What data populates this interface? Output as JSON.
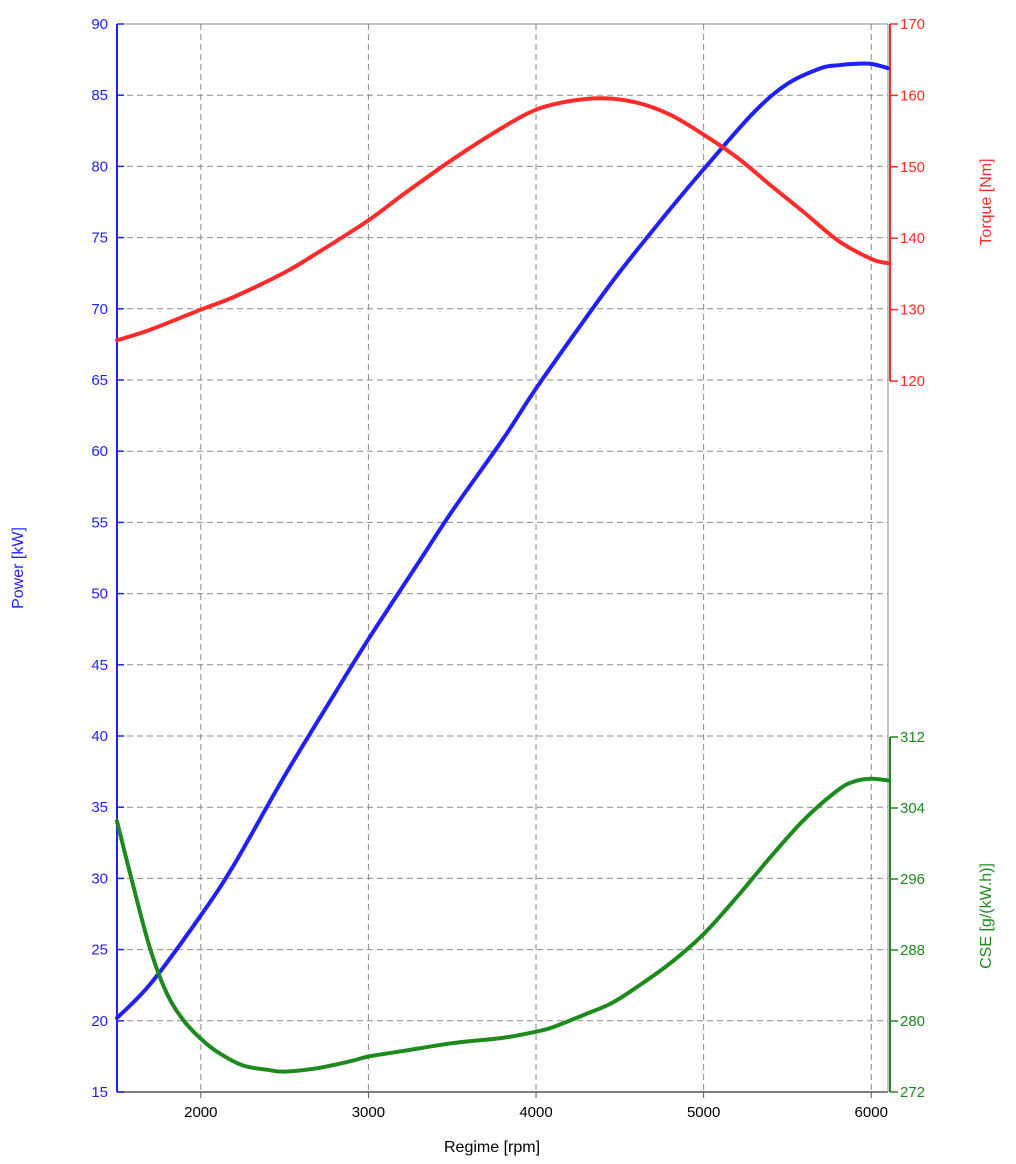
{
  "chart_data": {
    "type": "line",
    "xlabel": "Regime [rpm]",
    "xlim": [
      1500,
      6100
    ],
    "xticks": [
      2000,
      3000,
      4000,
      5000,
      6000
    ],
    "grid": true,
    "axes": {
      "power": {
        "label": "Power [kW]",
        "color": "#1f1fff",
        "lim": [
          15,
          90
        ],
        "ticks": [
          15,
          20,
          25,
          30,
          35,
          40,
          45,
          50,
          55,
          60,
          65,
          70,
          75,
          80,
          85,
          90
        ]
      },
      "torque": {
        "label": "Torque [Nm]",
        "color": "#ff2a2a",
        "lim": [
          120,
          170
        ],
        "ticks": [
          120,
          130,
          140,
          150,
          160,
          170
        ]
      },
      "cse": {
        "label": "CSE [g/(kW.h)]",
        "color": "#1e8a1e",
        "lim": [
          272,
          312
        ],
        "ticks": [
          272,
          280,
          288,
          296,
          304,
          312
        ]
      }
    },
    "series": [
      {
        "name": "Power [kW]",
        "axis": "power",
        "x": [
          1500,
          1700,
          2000,
          2200,
          2500,
          2800,
          3000,
          3300,
          3500,
          3800,
          4000,
          4300,
          4500,
          4800,
          5000,
          5300,
          5500,
          5700,
          5800,
          5900,
          6000,
          6100
        ],
        "y": [
          20.2,
          22.6,
          27.4,
          31.0,
          37.2,
          43.0,
          46.8,
          52.2,
          55.8,
          60.8,
          64.4,
          69.4,
          72.6,
          77.0,
          79.8,
          83.8,
          85.8,
          86.9,
          87.1,
          87.2,
          87.2,
          86.9
        ]
      },
      {
        "name": "Torque [Nm]",
        "axis": "torque",
        "x": [
          1500,
          1700,
          2000,
          2200,
          2500,
          2700,
          3000,
          3200,
          3500,
          3800,
          4000,
          4200,
          4400,
          4600,
          4800,
          5000,
          5200,
          5400,
          5600,
          5800,
          6000,
          6100
        ],
        "y": [
          125.7,
          127.2,
          130.0,
          131.8,
          135.2,
          138.0,
          142.5,
          146.0,
          151.0,
          155.5,
          158.0,
          159.2,
          159.6,
          159.0,
          157.3,
          154.5,
          151.3,
          147.4,
          143.6,
          139.7,
          137.1,
          136.5
        ]
      },
      {
        "name": "CSE [g/(kW.h)]",
        "axis": "cse",
        "x": [
          1500,
          1600,
          1700,
          1800,
          1900,
          2000,
          2100,
          2250,
          2400,
          2500,
          2700,
          2900,
          3000,
          3200,
          3500,
          3800,
          4000,
          4100,
          4300,
          4450,
          4600,
          4800,
          5000,
          5200,
          5400,
          5600,
          5800,
          5900,
          6000,
          6100
        ],
        "y": [
          302.5,
          295.0,
          288.0,
          283.0,
          280.0,
          278.0,
          276.5,
          275.0,
          274.5,
          274.3,
          274.7,
          275.5,
          276.0,
          276.6,
          277.5,
          278.1,
          278.8,
          279.3,
          280.8,
          282.0,
          283.8,
          286.5,
          289.8,
          294.0,
          298.5,
          302.7,
          306.0,
          307.0,
          307.3,
          307.1
        ]
      }
    ]
  }
}
